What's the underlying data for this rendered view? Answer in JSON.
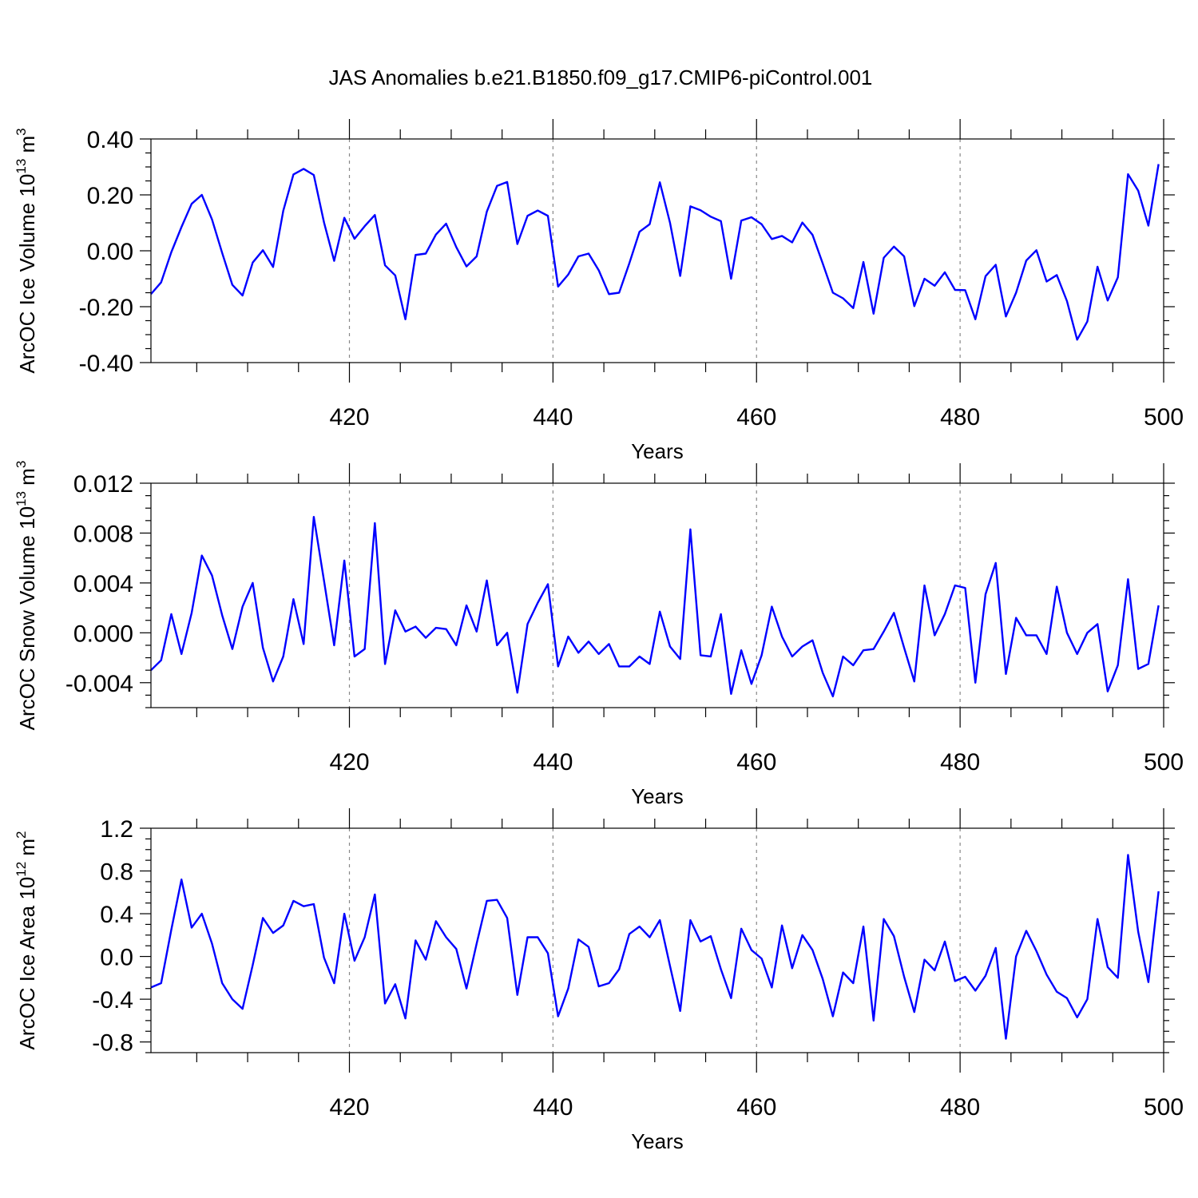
{
  "figure": {
    "title": "JAS Anomalies b.e21.B1850.f09_g17.CMIP6-piControl.001"
  },
  "chart_data": [
    {
      "type": "line",
      "id": "ice-volume",
      "ylabel": "ArcOC Ice Volume 10",
      "ylabel_exp": "13",
      "ylabel_unit": "m",
      "ylabel_unit_exp": "3",
      "xlabel": "Years",
      "xlim": [
        400.5,
        500
      ],
      "ylim": [
        -0.4,
        0.4
      ],
      "yticks": [
        -0.4,
        -0.2,
        0.0,
        0.2,
        0.4
      ],
      "yticklabels": [
        "-0.40",
        "-0.20",
        "0.00",
        "0.20",
        "0.40"
      ],
      "xticks": [
        420,
        440,
        460,
        480,
        500
      ],
      "xticklabels": [
        "420",
        "440",
        "460",
        "480",
        "500"
      ],
      "grid": "vertical-dashed",
      "color": "#0000ff",
      "x0": 400.5,
      "values": [
        -0.155,
        -0.113,
        -0.005,
        0.085,
        0.168,
        0.2,
        0.112,
        -0.008,
        -0.122,
        -0.16,
        -0.042,
        0.002,
        -0.058,
        0.143,
        0.273,
        0.293,
        0.271,
        0.102,
        -0.036,
        0.118,
        0.043,
        0.088,
        0.128,
        -0.052,
        -0.088,
        -0.245,
        -0.015,
        -0.01,
        0.058,
        0.097,
        0.013,
        -0.056,
        -0.02,
        0.14,
        0.232,
        0.246,
        0.024,
        0.125,
        0.144,
        0.125,
        -0.128,
        -0.085,
        -0.02,
        -0.01,
        -0.07,
        -0.155,
        -0.15,
        -0.045,
        0.068,
        0.095,
        0.245,
        0.1,
        -0.09,
        0.159,
        0.145,
        0.122,
        0.106,
        -0.1,
        0.108,
        0.12,
        0.095,
        0.042,
        0.053,
        0.03,
        0.101,
        0.057,
        -0.045,
        -0.15,
        -0.17,
        -0.205,
        -0.04,
        -0.225,
        -0.025,
        0.015,
        -0.02,
        -0.198,
        -0.1,
        -0.125,
        -0.077,
        -0.14,
        -0.141,
        -0.245,
        -0.091,
        -0.05,
        -0.235,
        -0.15,
        -0.035,
        0.002,
        -0.11,
        -0.087,
        -0.18,
        -0.318,
        -0.253,
        -0.057,
        -0.178,
        -0.095,
        0.274,
        0.215,
        0.09,
        0.31
      ]
    },
    {
      "type": "line",
      "id": "snow-volume",
      "ylabel": "ArcOC Snow Volume 10",
      "ylabel_exp": "13",
      "ylabel_unit": "m",
      "ylabel_unit_exp": "3",
      "xlabel": "Years",
      "xlim": [
        400.5,
        500
      ],
      "ylim": [
        -0.006,
        0.012
      ],
      "yticks": [
        -0.004,
        0.0,
        0.004,
        0.008,
        0.012
      ],
      "yticklabels": [
        "-0.004",
        "0.000",
        "0.004",
        "0.008",
        "0.012"
      ],
      "xticks": [
        420,
        440,
        460,
        480,
        500
      ],
      "xticklabels": [
        "420",
        "440",
        "460",
        "480",
        "500"
      ],
      "grid": "vertical-dashed",
      "color": "#0000ff",
      "x0": 400.5,
      "values": [
        -0.003,
        -0.0022,
        0.0015,
        -0.0017,
        0.0016,
        0.0062,
        0.0046,
        0.0014,
        -0.0013,
        0.0021,
        0.004,
        -0.0012,
        -0.0039,
        -0.0019,
        0.0027,
        -0.0009,
        0.0093,
        0.0042,
        -0.001,
        0.0058,
        -0.0019,
        -0.0013,
        0.0088,
        -0.0025,
        0.0018,
        0.0001,
        0.0005,
        -0.0004,
        0.0004,
        0.0003,
        -0.001,
        0.0022,
        0.0001,
        0.0042,
        -0.001,
        0.0,
        -0.0048,
        0.0007,
        0.0024,
        0.0039,
        -0.0027,
        -0.0003,
        -0.0016,
        -0.0007,
        -0.0017,
        -0.0009,
        -0.0027,
        -0.0027,
        -0.0019,
        -0.0025,
        0.0017,
        -0.0011,
        -0.0021,
        0.0083,
        -0.0018,
        -0.0019,
        0.0015,
        -0.0049,
        -0.0014,
        -0.0041,
        -0.0018,
        0.0021,
        -0.0003,
        -0.0019,
        -0.0011,
        -0.0006,
        -0.0032,
        -0.0051,
        -0.0019,
        -0.0026,
        -0.0014,
        -0.0013,
        0.0001,
        0.0016,
        -0.0012,
        -0.0039,
        0.0038,
        -0.0002,
        0.0015,
        0.0038,
        0.0036,
        -0.004,
        0.0031,
        0.0056,
        -0.0033,
        0.0012,
        -0.0002,
        -0.0002,
        -0.0017,
        0.0037,
        0.0,
        -0.0017,
        0.0,
        0.0007,
        -0.0047,
        -0.0026,
        0.0043,
        -0.0029,
        -0.0025,
        0.0022
      ]
    },
    {
      "type": "line",
      "id": "ice-area",
      "ylabel": "ArcOC Ice Area 10",
      "ylabel_exp": "12",
      "ylabel_unit": "m",
      "ylabel_unit_exp": "2",
      "xlabel": "Years",
      "xlim": [
        400.5,
        500
      ],
      "ylim": [
        -0.9,
        1.2
      ],
      "yticks": [
        -0.8,
        -0.4,
        0.0,
        0.4,
        0.8,
        1.2
      ],
      "yticklabels": [
        "-0.8",
        "-0.4",
        "0.0",
        "0.4",
        "0.8",
        "1.2"
      ],
      "xticks": [
        420,
        440,
        460,
        480,
        500
      ],
      "xticklabels": [
        "420",
        "440",
        "460",
        "480",
        "500"
      ],
      "grid": "vertical-dashed",
      "color": "#0000ff",
      "x0": 400.5,
      "values": [
        -0.29,
        -0.25,
        0.25,
        0.72,
        0.27,
        0.4,
        0.12,
        -0.25,
        -0.4,
        -0.49,
        -0.08,
        0.36,
        0.22,
        0.29,
        0.52,
        0.47,
        0.49,
        -0.01,
        -0.25,
        0.4,
        -0.04,
        0.18,
        0.58,
        -0.44,
        -0.26,
        -0.58,
        0.15,
        -0.03,
        0.33,
        0.18,
        0.07,
        -0.3,
        0.12,
        0.52,
        0.53,
        0.36,
        -0.36,
        0.18,
        0.18,
        0.03,
        -0.56,
        -0.3,
        0.16,
        0.09,
        -0.28,
        -0.25,
        -0.12,
        0.21,
        0.28,
        0.18,
        0.34,
        -0.09,
        -0.51,
        0.34,
        0.14,
        0.19,
        -0.12,
        -0.39,
        0.26,
        0.06,
        -0.02,
        -0.29,
        0.29,
        -0.11,
        0.2,
        0.06,
        -0.21,
        -0.56,
        -0.15,
        -0.25,
        0.28,
        -0.6,
        0.35,
        0.19,
        -0.19,
        -0.52,
        -0.03,
        -0.13,
        0.14,
        -0.23,
        -0.19,
        -0.32,
        -0.18,
        0.08,
        -0.77,
        0.0,
        0.24,
        0.05,
        -0.17,
        -0.33,
        -0.39,
        -0.57,
        -0.4,
        0.35,
        -0.1,
        -0.2,
        0.95,
        0.23,
        -0.24,
        0.61
      ]
    }
  ]
}
